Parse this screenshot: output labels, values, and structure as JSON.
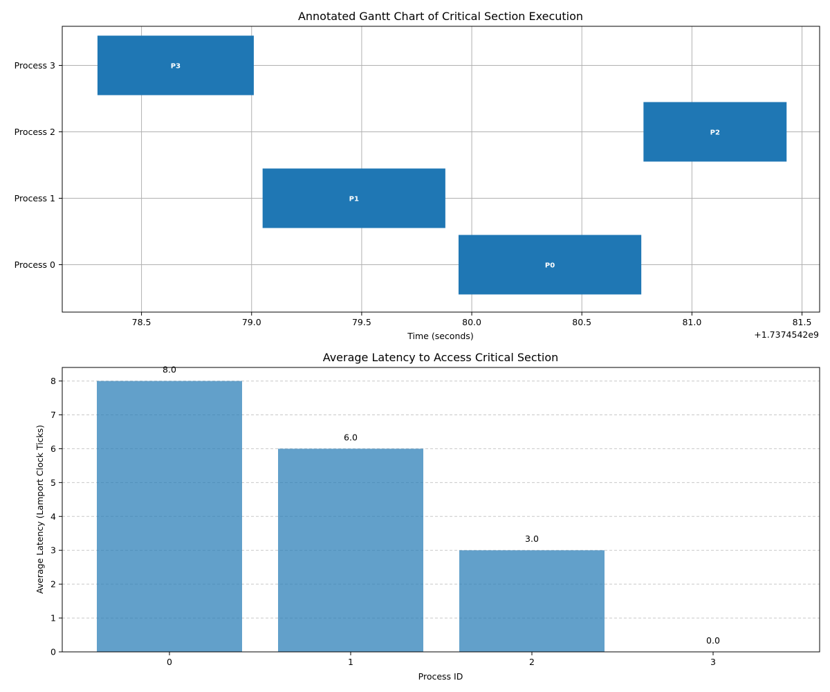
{
  "chart_data": [
    {
      "type": "bar",
      "orientation": "horizontal",
      "title": "Annotated Gantt Chart of Critical Section Execution",
      "xlabel": "Time (seconds)",
      "ylabel": "",
      "offset_label": "+1.7374542e9",
      "xlim": [
        78.14,
        81.58
      ],
      "xticks": [
        "78.5",
        "79.0",
        "79.5",
        "80.0",
        "80.5",
        "81.0",
        "81.5"
      ],
      "categories": [
        "Process 0",
        "Process 1",
        "Process 2",
        "Process 3"
      ],
      "grid": true,
      "color": "#1f77b4",
      "bars": [
        {
          "category": "Process 3",
          "start": 78.3,
          "end": 79.01,
          "label": "P3"
        },
        {
          "category": "Process 1",
          "start": 79.05,
          "end": 79.88,
          "label": "P1"
        },
        {
          "category": "Process 0",
          "start": 79.94,
          "end": 80.77,
          "label": "P0"
        },
        {
          "category": "Process 2",
          "start": 80.78,
          "end": 81.43,
          "label": "P2"
        }
      ]
    },
    {
      "type": "bar",
      "title": "Average Latency to Access Critical Section",
      "xlabel": "Process ID",
      "ylabel": "Average Latency (Lamport Clock Ticks)",
      "categories": [
        "0",
        "1",
        "2",
        "3"
      ],
      "values": [
        8.0,
        6.0,
        3.0,
        0.0
      ],
      "value_labels": [
        "8.0",
        "6.0",
        "3.0",
        "0.0"
      ],
      "ylim": [
        0,
        8.4
      ],
      "yticks": [
        "0",
        "1",
        "2",
        "3",
        "4",
        "5",
        "6",
        "7",
        "8"
      ],
      "grid": "y-dashed",
      "color": "#1f77b4"
    }
  ]
}
